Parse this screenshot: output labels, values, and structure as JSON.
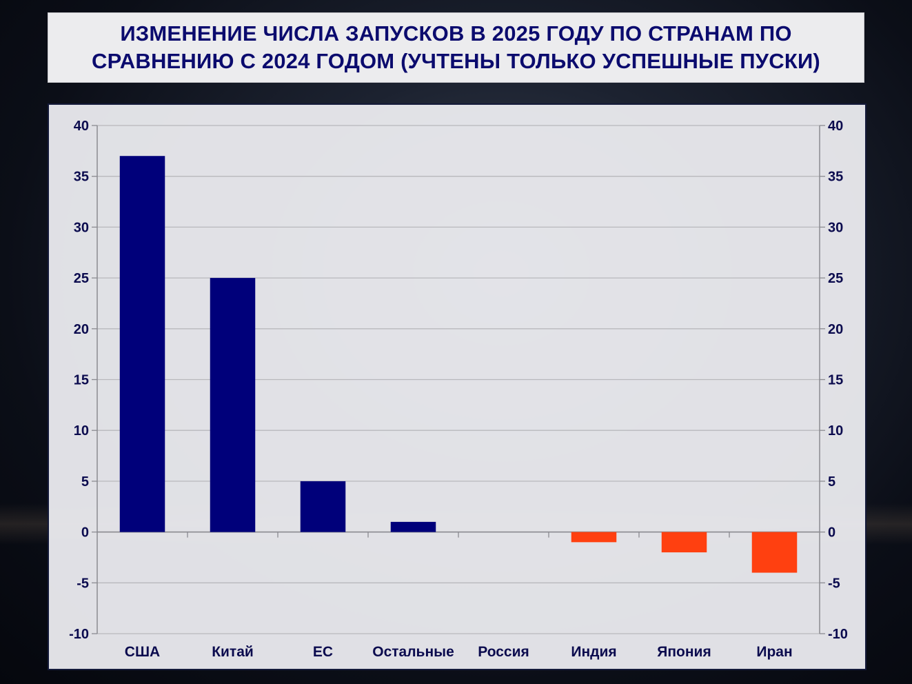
{
  "title": "ИЗМЕНЕНИЕ ЧИСЛА ЗАПУСКОВ В 2025 ГОДУ ПО СТРАНАМ ПО СРАВНЕНИЮ С 2024 ГОДОМ (УЧТЕНЫ ТОЛЬКО УСПЕШНЫЕ ПУСКИ)",
  "colors": {
    "positive": "#00007a",
    "negative": "#ff4010",
    "text": "#0b0b4e",
    "grid": "#b8b8bc"
  },
  "chart_data": {
    "type": "bar",
    "title": "ИЗМЕНЕНИЕ ЧИСЛА ЗАПУСКОВ В 2025 ГОДУ ПО СТРАНАМ ПО СРАВНЕНИЮ С 2024 ГОДОМ (УЧТЕНЫ ТОЛЬКО УСПЕШНЫЕ ПУСКИ)",
    "categories": [
      "США",
      "Китай",
      "ЕС",
      "Остальные",
      "Россия",
      "Индия",
      "Япония",
      "Иран"
    ],
    "values": [
      37,
      25,
      5,
      1,
      0,
      -1,
      -2,
      -4
    ],
    "ylim": [
      -10,
      40
    ],
    "yticks": [
      40,
      35,
      30,
      25,
      20,
      15,
      10,
      5,
      0,
      -5,
      -10
    ],
    "ytick_labels": [
      "40",
      "35",
      "30",
      "25",
      "20",
      "15",
      "10",
      "5",
      "0",
      "-5",
      "-10"
    ],
    "secondary_y_axis": true,
    "grid": true,
    "legend": "none",
    "xlabel": "",
    "ylabel": ""
  }
}
